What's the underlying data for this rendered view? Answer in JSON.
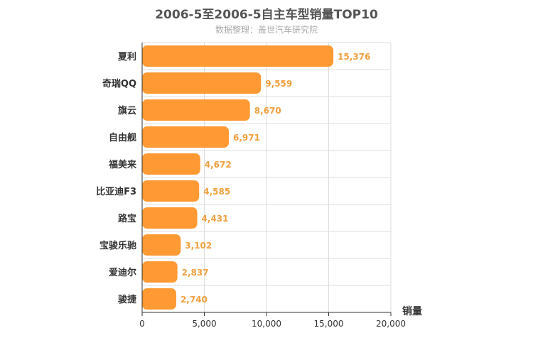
{
  "colors": {
    "bar": "#FF9933",
    "label": "#F0A040",
    "grid": "#dddddd",
    "axis": "#333333"
  },
  "chart_data": {
    "type": "bar",
    "orientation": "horizontal",
    "title": "2006-5至2006-5自主车型销量TOP10",
    "subtitle": "数据整理：盖世汽车研究院",
    "categories": [
      "夏利",
      "奇瑞QQ",
      "旗云",
      "自由舰",
      "福美来",
      "比亚迪F3",
      "路宝",
      "宝骏乐驰",
      "爱迪尔",
      "骏捷"
    ],
    "values": [
      15376,
      9559,
      8670,
      6971,
      4672,
      4585,
      4431,
      3102,
      2837,
      2740
    ],
    "value_labels": [
      "15,376",
      "9,559",
      "8,670",
      "6,971",
      "4,672",
      "4,585",
      "4,431",
      "3,102",
      "2,837",
      "2,740"
    ],
    "xlabel": "销量",
    "ylabel": "",
    "xlim": [
      0,
      20000
    ],
    "xticks": [
      0,
      5000,
      10000,
      15000,
      20000
    ],
    "xtick_labels": [
      "0",
      "5,000",
      "10,000",
      "15,000",
      "20,000"
    ],
    "grid": true,
    "legend": "none"
  }
}
